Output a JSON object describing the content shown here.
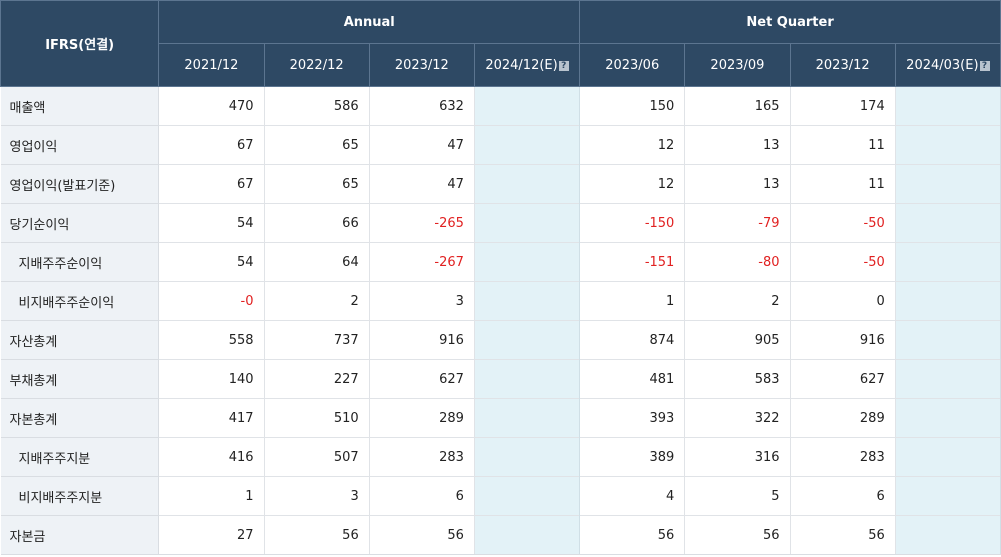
{
  "header": {
    "corner": "IFRS(연결)",
    "annual_label": "Annual",
    "quarter_label": "Net Quarter",
    "help_icon": "?"
  },
  "annual_periods": [
    "2021/12",
    "2022/12",
    "2023/12",
    "2024/12(E)"
  ],
  "quarter_periods": [
    "2023/06",
    "2023/09",
    "2023/12",
    "2024/03(E)"
  ],
  "rows": [
    {
      "label": "매출액",
      "annual": [
        "470",
        "586",
        "632",
        ""
      ],
      "quarter": [
        "150",
        "165",
        "174",
        ""
      ]
    },
    {
      "label": "영업이익",
      "annual": [
        "67",
        "65",
        "47",
        ""
      ],
      "quarter": [
        "12",
        "13",
        "11",
        ""
      ]
    },
    {
      "label": "영업이익(발표기준)",
      "annual": [
        "67",
        "65",
        "47",
        ""
      ],
      "quarter": [
        "12",
        "13",
        "11",
        ""
      ]
    },
    {
      "label": "당기순이익",
      "annual": [
        "54",
        "66",
        "-265",
        ""
      ],
      "quarter": [
        "-150",
        "-79",
        "-50",
        ""
      ]
    },
    {
      "label": "지배주주순이익",
      "annual": [
        "54",
        "64",
        "-267",
        ""
      ],
      "quarter": [
        "-151",
        "-80",
        "-50",
        ""
      ]
    },
    {
      "label": "비지배주주순이익",
      "annual": [
        "-0",
        "2",
        "3",
        ""
      ],
      "quarter": [
        "1",
        "2",
        "0",
        ""
      ]
    },
    {
      "label": "자산총계",
      "annual": [
        "558",
        "737",
        "916",
        ""
      ],
      "quarter": [
        "874",
        "905",
        "916",
        ""
      ]
    },
    {
      "label": "부채총계",
      "annual": [
        "140",
        "227",
        "627",
        ""
      ],
      "quarter": [
        "481",
        "583",
        "627",
        ""
      ]
    },
    {
      "label": "자본총계",
      "annual": [
        "417",
        "510",
        "289",
        ""
      ],
      "quarter": [
        "393",
        "322",
        "289",
        ""
      ]
    },
    {
      "label": "지배주주지분",
      "annual": [
        "416",
        "507",
        "283",
        ""
      ],
      "quarter": [
        "389",
        "316",
        "283",
        ""
      ]
    },
    {
      "label": "비지배주주지분",
      "annual": [
        "1",
        "3",
        "6",
        ""
      ],
      "quarter": [
        "4",
        "5",
        "6",
        ""
      ]
    },
    {
      "label": "자본금",
      "annual": [
        "27",
        "56",
        "56",
        ""
      ],
      "quarter": [
        "56",
        "56",
        "56",
        ""
      ]
    }
  ],
  "colors": {
    "header_bg": "#2e4964",
    "label_bg": "#eef2f6",
    "estimate_bg": "#e3f2f7",
    "negative": "#e12121"
  }
}
